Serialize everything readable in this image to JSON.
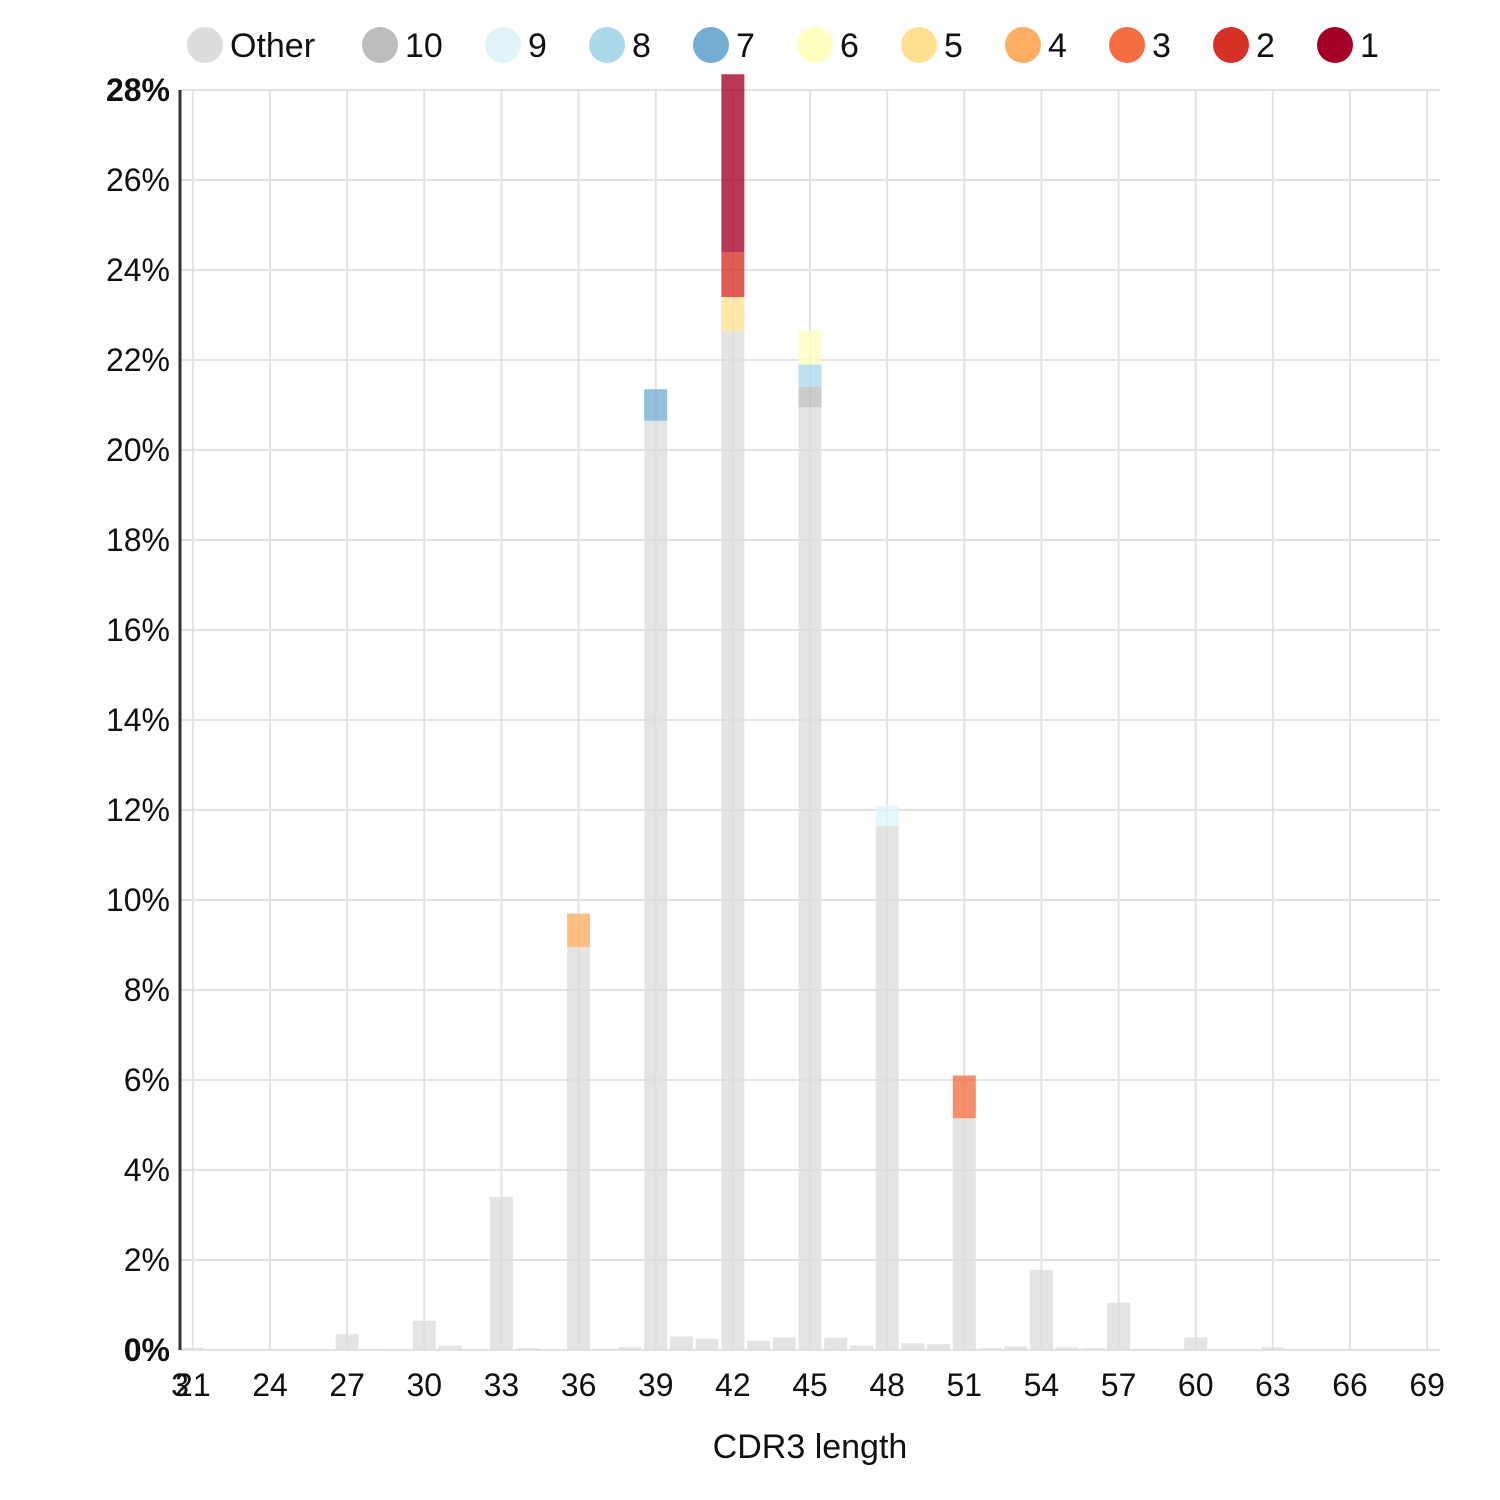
{
  "chart_data": {
    "type": "bar",
    "stacked": true,
    "xlabel": "CDR3 length",
    "ylabel": "",
    "ylim": [
      0,
      28
    ],
    "xlim": [
      20.5,
      69.5
    ],
    "y_ticks": [
      0,
      2,
      4,
      6,
      8,
      10,
      12,
      14,
      16,
      18,
      20,
      22,
      24,
      26,
      28
    ],
    "y_tick_labels": [
      "0%",
      "2%",
      "4%",
      "6%",
      "8%",
      "10%",
      "12%",
      "14%",
      "16%",
      "18%",
      "20%",
      "22%",
      "24%",
      "26%",
      "28%"
    ],
    "x_ticks": [
      21,
      24,
      27,
      30,
      33,
      36,
      39,
      42,
      45,
      48,
      51,
      54,
      57,
      60,
      63,
      66,
      69
    ],
    "x_tick_labels": [
      "21",
      "24",
      "27",
      "30",
      "33",
      "36",
      "39",
      "42",
      "45",
      "48",
      "51",
      "54",
      "57",
      "60",
      "63",
      "66",
      "69"
    ],
    "extra_x_label": "3",
    "grid": true,
    "legend_position": "top",
    "legend": [
      {
        "label": "Other",
        "color": "#dcdcdc"
      },
      {
        "label": "10",
        "color": "#bdbdbd"
      },
      {
        "label": "9",
        "color": "#e0f3f8"
      },
      {
        "label": "8",
        "color": "#abd9e9"
      },
      {
        "label": "7",
        "color": "#74add1"
      },
      {
        "label": "6",
        "color": "#ffffbf"
      },
      {
        "label": "5",
        "color": "#fee090"
      },
      {
        "label": "4",
        "color": "#fdae61"
      },
      {
        "label": "3",
        "color": "#f46d43"
      },
      {
        "label": "2",
        "color": "#d73027"
      },
      {
        "label": "1",
        "color": "#a50026"
      }
    ],
    "series": [
      {
        "name": "Other",
        "data": [
          {
            "x": 21,
            "y": 0.05
          },
          {
            "x": 27,
            "y": 0.35
          },
          {
            "x": 28,
            "y": 0.02
          },
          {
            "x": 30,
            "y": 0.65
          },
          {
            "x": 31,
            "y": 0.1
          },
          {
            "x": 33,
            "y": 3.4
          },
          {
            "x": 34,
            "y": 0.04
          },
          {
            "x": 36,
            "y": 8.95
          },
          {
            "x": 37,
            "y": 0.03
          },
          {
            "x": 38,
            "y": 0.06
          },
          {
            "x": 39,
            "y": 20.65
          },
          {
            "x": 40,
            "y": 0.3
          },
          {
            "x": 41,
            "y": 0.25
          },
          {
            "x": 42,
            "y": 22.65
          },
          {
            "x": 43,
            "y": 0.2
          },
          {
            "x": 44,
            "y": 0.28
          },
          {
            "x": 45,
            "y": 20.95
          },
          {
            "x": 46,
            "y": 0.27
          },
          {
            "x": 47,
            "y": 0.1
          },
          {
            "x": 48,
            "y": 11.65
          },
          {
            "x": 49,
            "y": 0.15
          },
          {
            "x": 50,
            "y": 0.13
          },
          {
            "x": 51,
            "y": 5.15
          },
          {
            "x": 52,
            "y": 0.04
          },
          {
            "x": 53,
            "y": 0.08
          },
          {
            "x": 54,
            "y": 1.78
          },
          {
            "x": 55,
            "y": 0.06
          },
          {
            "x": 56,
            "y": 0.04
          },
          {
            "x": 57,
            "y": 1.05
          },
          {
            "x": 58,
            "y": 0.03
          },
          {
            "x": 60,
            "y": 0.28
          },
          {
            "x": 63,
            "y": 0.06
          }
        ]
      },
      {
        "name": "10",
        "data": [
          {
            "x": 45,
            "y": 0.45
          }
        ]
      },
      {
        "name": "9",
        "data": [
          {
            "x": 48,
            "y": 0.45
          }
        ]
      },
      {
        "name": "8",
        "data": [
          {
            "x": 45,
            "y": 0.5
          }
        ]
      },
      {
        "name": "7",
        "data": [
          {
            "x": 39,
            "y": 0.7
          }
        ]
      },
      {
        "name": "6",
        "data": [
          {
            "x": 45,
            "y": 0.75
          }
        ]
      },
      {
        "name": "5",
        "data": [
          {
            "x": 42,
            "y": 0.75
          }
        ]
      },
      {
        "name": "4",
        "data": [
          {
            "x": 36,
            "y": 0.75
          }
        ]
      },
      {
        "name": "3",
        "data": [
          {
            "x": 51,
            "y": 0.95
          }
        ]
      },
      {
        "name": "2",
        "data": [
          {
            "x": 42,
            "y": 1.0
          }
        ]
      },
      {
        "name": "1",
        "data": [
          {
            "x": 42,
            "y": 3.95
          }
        ]
      }
    ]
  }
}
